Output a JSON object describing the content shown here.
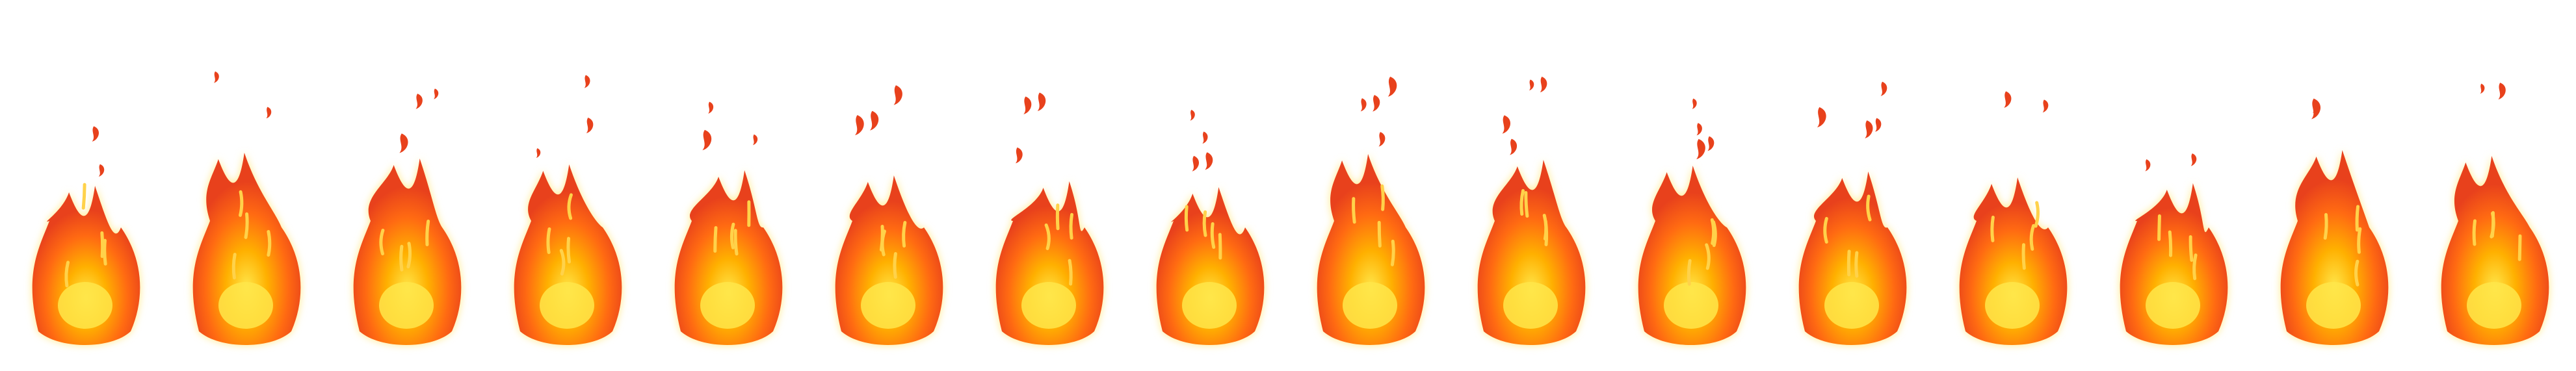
{
  "sprite_sheet": {
    "name": "",
    "frame_count": 16,
    "background": "#ffffff",
    "colors": {
      "glow_outer": "#ffe98a",
      "flame_outer": "#e8411c",
      "flame_mid": "#ff6a12",
      "flame_core": "#ffb000",
      "hot_center": "#ffe64a",
      "highlight": "#ffd24a"
    }
  },
  "frames": [
    {
      "index": 1
    },
    {
      "index": 2
    },
    {
      "index": 3
    },
    {
      "index": 4
    },
    {
      "index": 5
    },
    {
      "index": 6
    },
    {
      "index": 7
    },
    {
      "index": 8
    },
    {
      "index": 9
    },
    {
      "index": 10
    },
    {
      "index": 11
    },
    {
      "index": 12
    },
    {
      "index": 13
    },
    {
      "index": 14
    },
    {
      "index": 15
    },
    {
      "index": 16
    }
  ]
}
